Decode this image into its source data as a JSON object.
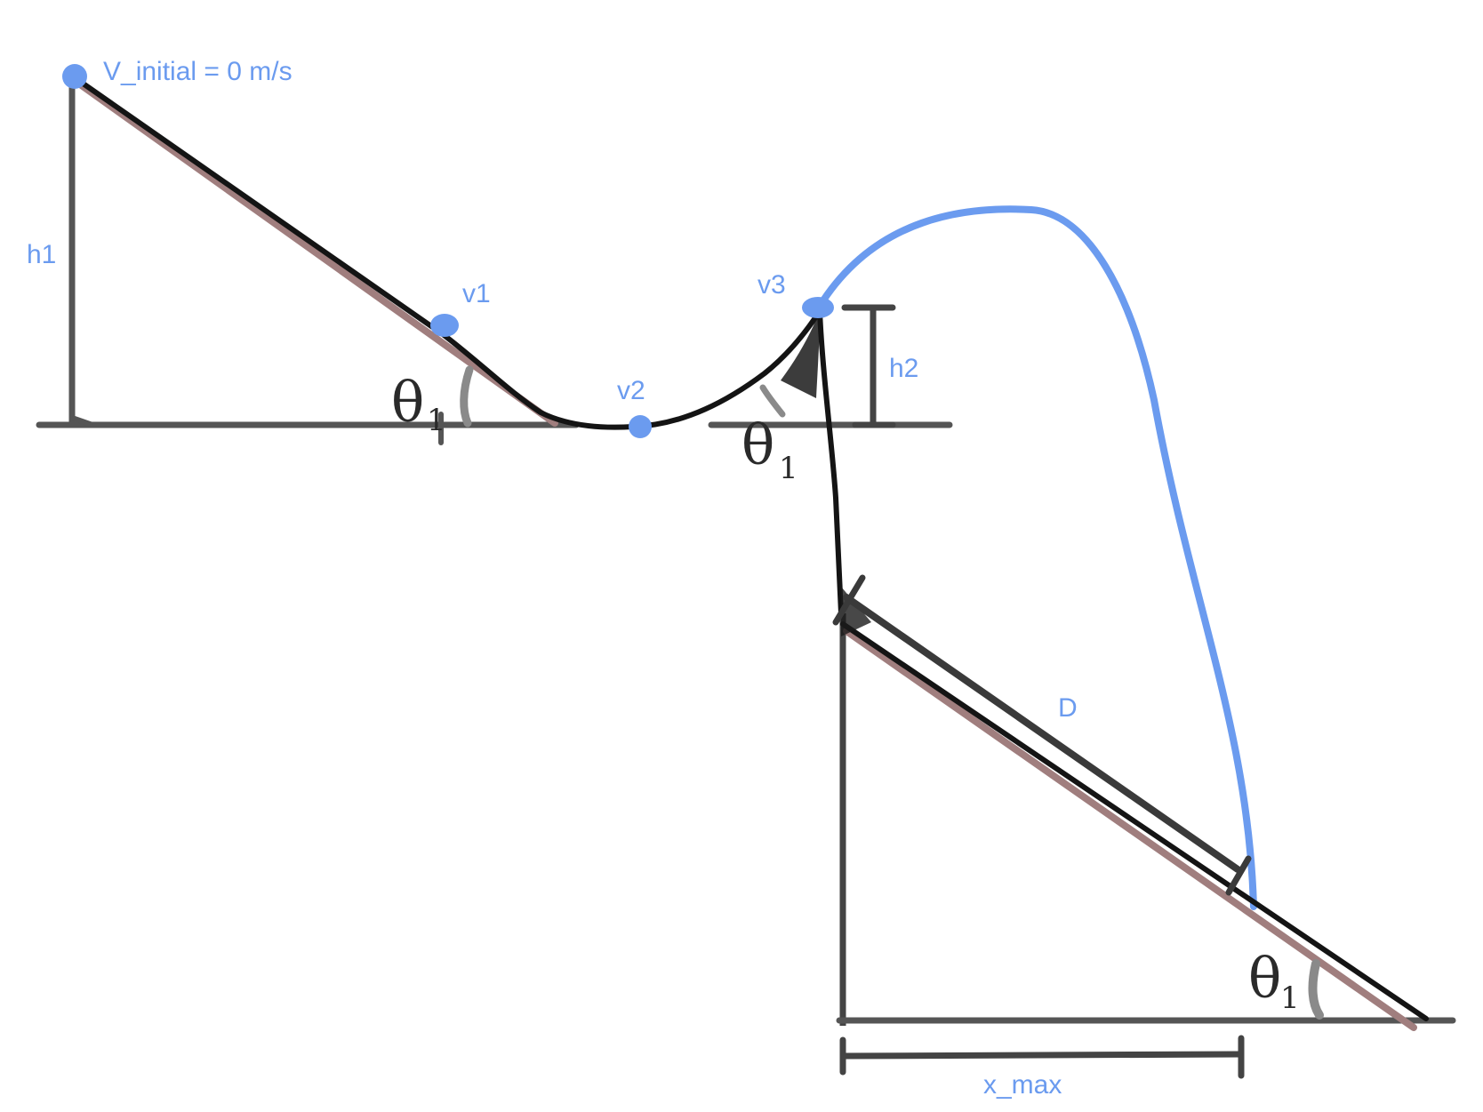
{
  "colors": {
    "accent": "#6b9bef",
    "ink": "#141414",
    "ground": "#555555",
    "slope_shadow": "#a07e7e",
    "angle_mark": "#8a8a8a"
  },
  "labels": {
    "v_initial": "V_initial = 0 m/s",
    "h1": "h1",
    "v1": "v1",
    "v2": "v2",
    "v3": "v3",
    "h2": "h2",
    "d": "D",
    "x_max": "x_max"
  },
  "angles": {
    "first_slope": {
      "symbol": "θ",
      "subscript": "1"
    },
    "ramp": {
      "symbol": "θ",
      "subscript": "1"
    },
    "landing_slope": {
      "symbol": "θ",
      "subscript": "1"
    }
  }
}
